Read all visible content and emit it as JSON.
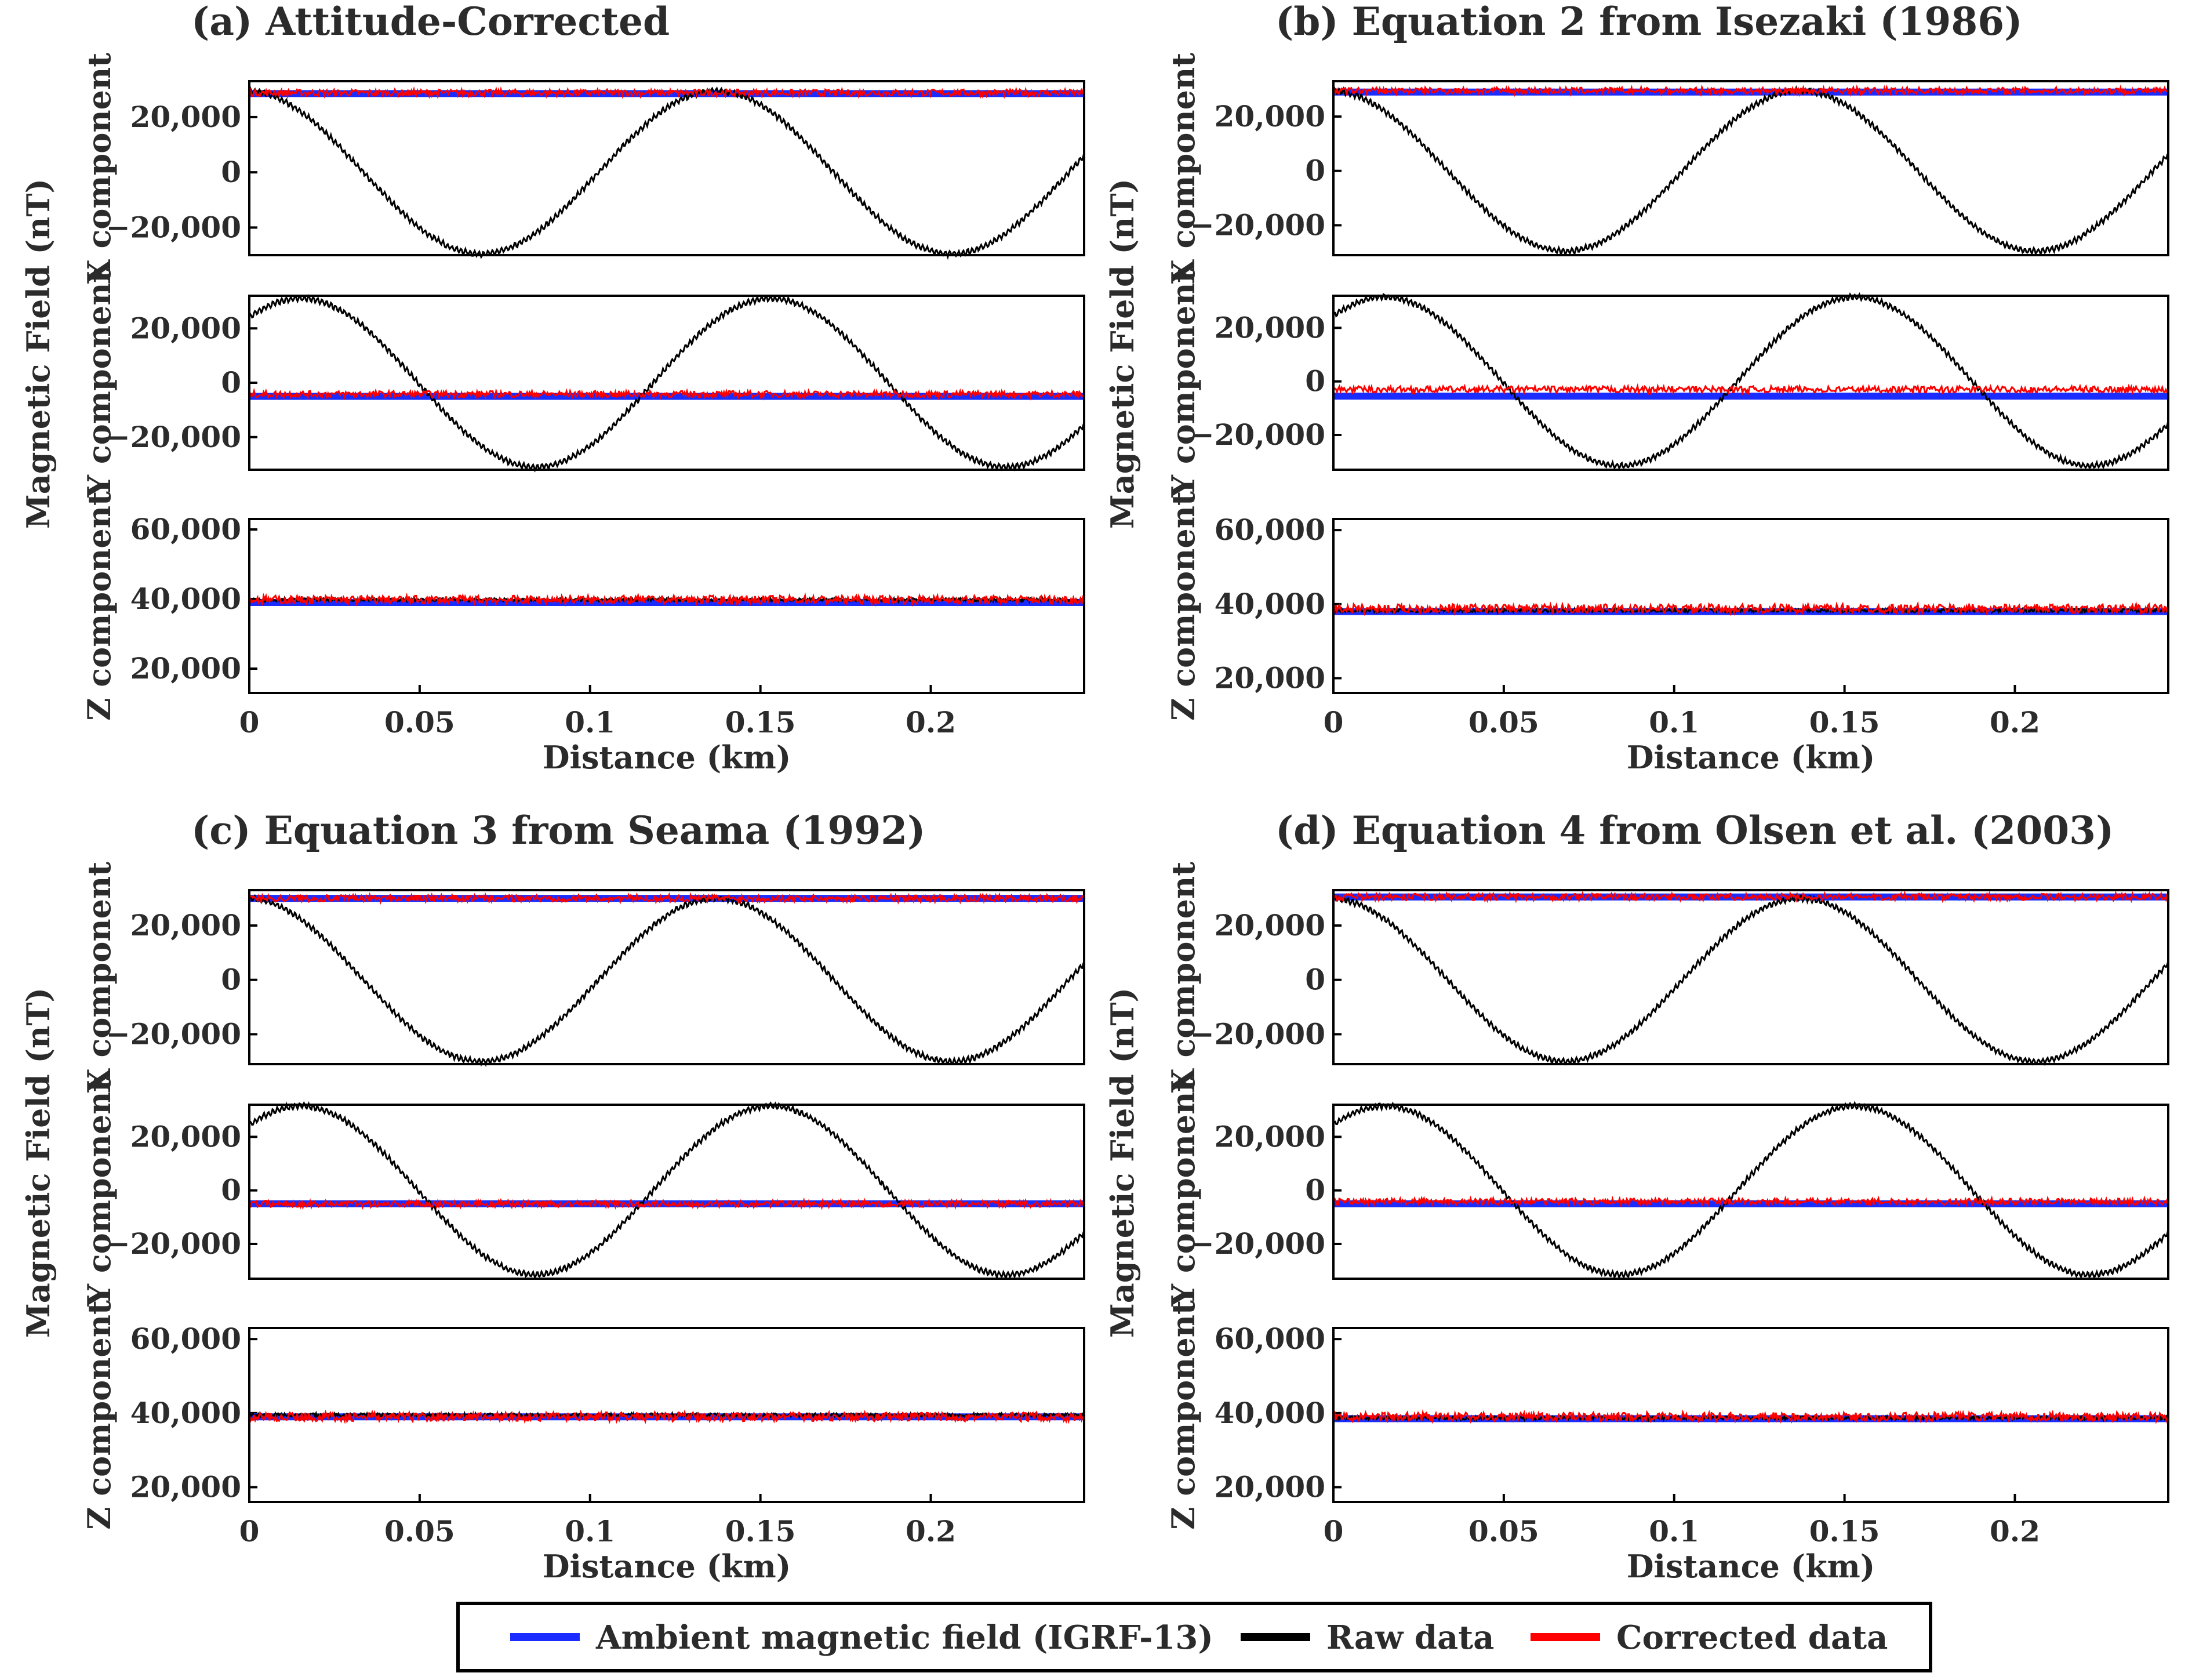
{
  "figure": {
    "legend": [
      {
        "label": "Ambient magnetic field (IGRF-13)",
        "color": "#1a2cff"
      },
      {
        "label": "Raw data",
        "color": "#000000"
      },
      {
        "label": "Corrected data",
        "color": "#ff0000"
      }
    ]
  },
  "chart_data": [
    {
      "type": "line",
      "title": "(a) Attitude-Corrected",
      "xlabel": "Distance (km)",
      "ylabel_outer": "Magnetic Field (nT)",
      "x_range": [
        0,
        0.245
      ],
      "x_ticks": [
        "0",
        "0.05",
        "0.1",
        "0.15",
        "0.2"
      ],
      "panels": [
        {
          "component": "X component",
          "ylim": [
            -30000,
            33000
          ],
          "y_ticks": [
            "20,000",
            "0",
            "−20,000"
          ],
          "ambient": 28500,
          "corrected": 28800,
          "raw": {
            "amplitude": 29500,
            "offset": 0,
            "period_km": 0.138,
            "phase_km": 0.0335
          }
        },
        {
          "component": "Y component",
          "ylim": [
            -32000,
            32000
          ],
          "y_ticks": [
            "20,000",
            "0",
            "−20,000"
          ],
          "ambient": -5000,
          "corrected": -4200,
          "raw": {
            "amplitude": 31000,
            "offset": 0,
            "period_km": 0.138,
            "phase_km": 0.0495
          }
        },
        {
          "component": "Z component",
          "ylim": [
            13000,
            63000
          ],
          "y_ticks": [
            "60,000",
            "40,000",
            "20,000"
          ],
          "ambient": 39000,
          "corrected": 39800,
          "raw": {
            "amplitude": 0,
            "offset": 39800,
            "period_km": 0.138,
            "phase_km": 0
          }
        }
      ]
    },
    {
      "type": "line",
      "title": "(b) Equation 2 from Isezaki (1986)",
      "xlabel": "Distance (km)",
      "ylabel_outer": "Magnetic Field (nT)",
      "x_range": [
        0,
        0.245
      ],
      "x_ticks": [
        "0",
        "0.05",
        "0.1",
        "0.15",
        "0.2"
      ],
      "panels": [
        {
          "component": "X component",
          "ylim": [
            -31000,
            33000
          ],
          "y_ticks": [
            "20,000",
            "0",
            "−20,000"
          ],
          "ambient": 29000,
          "corrected": 29500,
          "raw": {
            "amplitude": 29500,
            "offset": 0,
            "period_km": 0.138,
            "phase_km": 0.0335
          }
        },
        {
          "component": "Y component",
          "ylim": [
            -33000,
            32000
          ],
          "y_ticks": [
            "20,000",
            "0",
            "−20,000"
          ],
          "ambient": -5500,
          "corrected": -3000,
          "raw": {
            "amplitude": 31500,
            "offset": 0,
            "period_km": 0.138,
            "phase_km": 0.0495
          }
        },
        {
          "component": "Z component",
          "ylim": [
            16000,
            63000
          ],
          "y_ticks": [
            "60,000",
            "40,000",
            "20,000"
          ],
          "ambient": 38000,
          "corrected": 38800,
          "raw": {
            "amplitude": 0,
            "offset": 38300,
            "period_km": 0.138,
            "phase_km": 0
          }
        }
      ]
    },
    {
      "type": "line",
      "title": "(c) Equation 3 from Seama (1992)",
      "xlabel": "Distance (km)",
      "ylabel_outer": "Magnetic Field (nT)",
      "x_range": [
        0,
        0.245
      ],
      "x_ticks": [
        "0",
        "0.05",
        "0.1",
        "0.15",
        "0.2"
      ],
      "panels": [
        {
          "component": "X component",
          "ylim": [
            -31000,
            33000
          ],
          "y_ticks": [
            "20,000",
            "0",
            "−20,000"
          ],
          "ambient": 30000,
          "corrected": 30000,
          "raw": {
            "amplitude": 30000,
            "offset": 0,
            "period_km": 0.138,
            "phase_km": 0.0335
          }
        },
        {
          "component": "Y component",
          "ylim": [
            -33000,
            32000
          ],
          "y_ticks": [
            "20,000",
            "0",
            "−20,000"
          ],
          "ambient": -5000,
          "corrected": -5000,
          "raw": {
            "amplitude": 31500,
            "offset": 0,
            "period_km": 0.138,
            "phase_km": 0.0495
          }
        },
        {
          "component": "Z component",
          "ylim": [
            16000,
            63000
          ],
          "y_ticks": [
            "60,000",
            "40,000",
            "20,000"
          ],
          "ambient": 39000,
          "corrected": 39000,
          "raw": {
            "amplitude": 0,
            "offset": 39500,
            "period_km": 0.138,
            "phase_km": 0
          }
        }
      ]
    },
    {
      "type": "line",
      "title": "(d) Equation 4 from Olsen et al. (2003)",
      "xlabel": "Distance (km)",
      "ylabel_outer": "Magnetic Field (nT)",
      "x_range": [
        0,
        0.245
      ],
      "x_ticks": [
        "0",
        "0.05",
        "0.1",
        "0.15",
        "0.2"
      ],
      "panels": [
        {
          "component": "X component",
          "ylim": [
            -31000,
            33000
          ],
          "y_ticks": [
            "20,000",
            "0",
            "−20,000"
          ],
          "ambient": 30500,
          "corrected": 30500,
          "raw": {
            "amplitude": 30000,
            "offset": 0,
            "period_km": 0.138,
            "phase_km": 0.0335
          }
        },
        {
          "component": "Y component",
          "ylim": [
            -33000,
            32000
          ],
          "y_ticks": [
            "20,000",
            "0",
            "−20,000"
          ],
          "ambient": -5000,
          "corrected": -4200,
          "raw": {
            "amplitude": 31500,
            "offset": 0,
            "period_km": 0.138,
            "phase_km": 0.0495
          }
        },
        {
          "component": "Z component",
          "ylim": [
            16000,
            63000
          ],
          "y_ticks": [
            "60,000",
            "40,000",
            "20,000"
          ],
          "ambient": 38500,
          "corrected": 39000,
          "raw": {
            "amplitude": 0,
            "offset": 38700,
            "period_km": 0.138,
            "phase_km": 0
          }
        }
      ]
    }
  ]
}
